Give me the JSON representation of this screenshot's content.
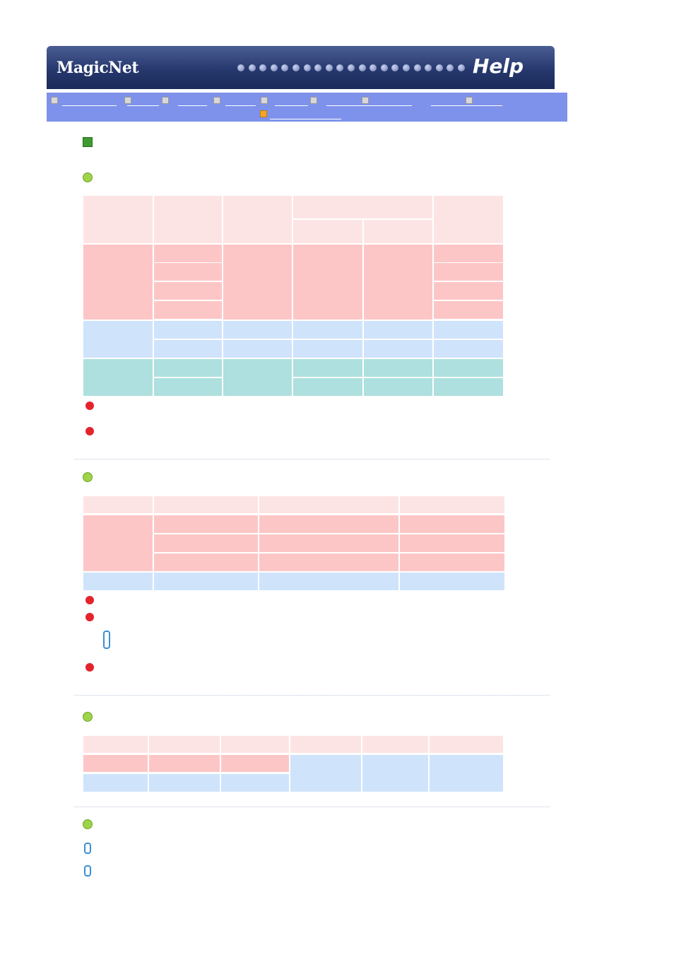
{
  "header": {
    "brand": "MagicNet",
    "title": "Help"
  }
}
